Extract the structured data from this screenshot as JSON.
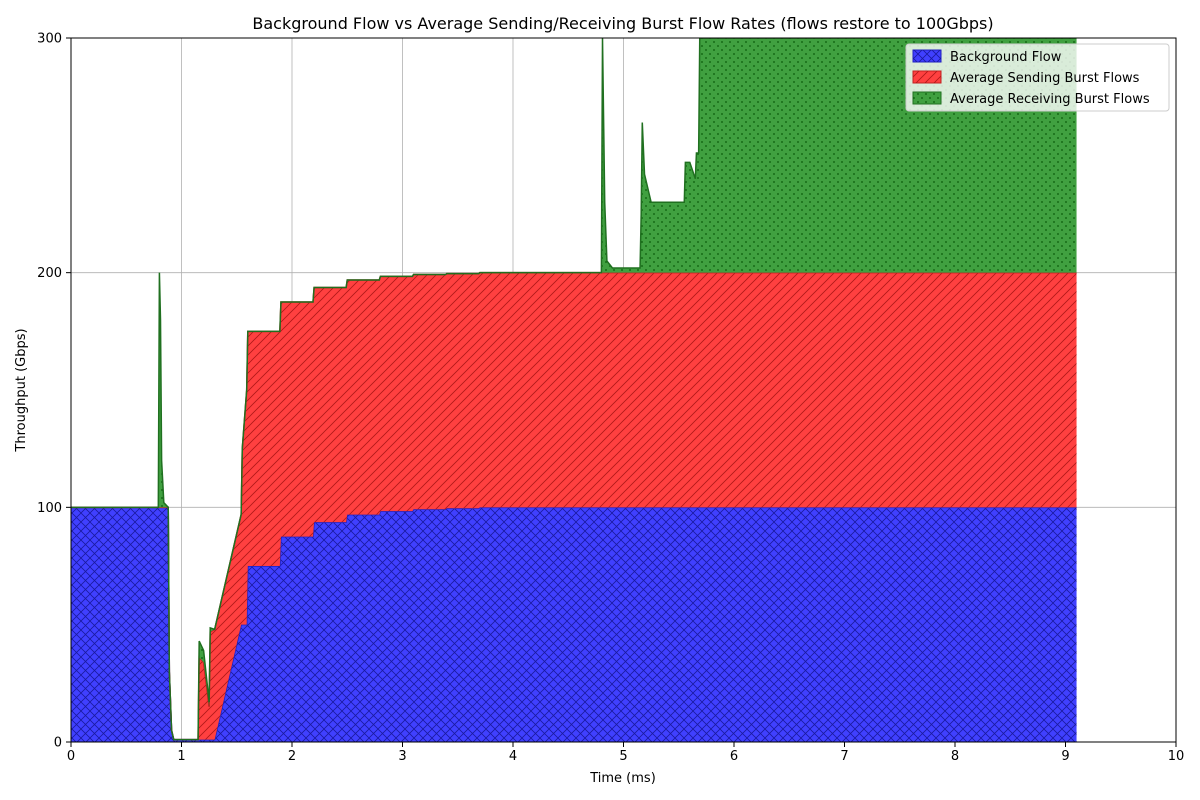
{
  "chart_data": {
    "type": "area",
    "stacked": true,
    "title": "Background Flow vs Average Sending/Receiving Burst Flow Rates (flows restore to 100Gbps)",
    "xlabel": "Time (ms)",
    "ylabel": "Throughput (Gbps)",
    "xlim": [
      0,
      10
    ],
    "ylim": [
      0,
      300
    ],
    "xticks": [
      0,
      1,
      2,
      3,
      4,
      5,
      6,
      7,
      8,
      9,
      10
    ],
    "yticks": [
      0,
      100,
      200,
      300
    ],
    "grid": true,
    "legend_position": "top-right",
    "series": [
      {
        "name": "Background Flow",
        "color": "#0000ff",
        "pattern": "crosshatch",
        "points": [
          [
            0,
            100
          ],
          [
            0.88,
            100
          ],
          [
            0.89,
            30
          ],
          [
            0.91,
            5
          ],
          [
            0.93,
            1
          ],
          [
            1.3,
            1
          ],
          [
            1.3,
            50
          ],
          [
            1.59,
            50
          ],
          [
            1.6,
            75
          ],
          [
            1.89,
            75
          ],
          [
            1.9,
            87.5
          ],
          [
            2.19,
            87.5
          ],
          [
            2.2,
            93.7
          ],
          [
            2.49,
            93.7
          ],
          [
            2.5,
            96.9
          ],
          [
            2.79,
            96.9
          ],
          [
            2.8,
            98.4
          ],
          [
            3.09,
            98.4
          ],
          [
            3.1,
            99.2
          ],
          [
            3.39,
            99.2
          ],
          [
            3.4,
            99.6
          ],
          [
            3.69,
            99.6
          ],
          [
            3.7,
            100
          ],
          [
            9.1,
            100
          ]
        ]
      },
      {
        "name": "Average Sending Burst Flows",
        "color": "#ff0000",
        "pattern": "diagonal",
        "points": [
          [
            0,
            0
          ],
          [
            0.88,
            0
          ],
          [
            0.93,
            0
          ],
          [
            1.15,
            0
          ],
          [
            1.16,
            35
          ],
          [
            1.2,
            33
          ],
          [
            1.25,
            14
          ],
          [
            1.26,
            46
          ],
          [
            1.3,
            47
          ],
          [
            1.3,
            47
          ],
          [
            1.54,
            47
          ],
          [
            1.55,
            75
          ],
          [
            1.59,
            100
          ],
          [
            1.6,
            100
          ],
          [
            1.89,
            100
          ],
          [
            1.9,
            100
          ],
          [
            2.19,
            100
          ],
          [
            2.2,
            100
          ],
          [
            2.49,
            100
          ],
          [
            2.5,
            100
          ],
          [
            2.79,
            100
          ],
          [
            2.8,
            100
          ],
          [
            3.09,
            100
          ],
          [
            3.1,
            100
          ],
          [
            3.39,
            100
          ],
          [
            3.4,
            100
          ],
          [
            3.69,
            100
          ],
          [
            3.7,
            100
          ],
          [
            9.1,
            100
          ]
        ]
      },
      {
        "name": "Average Receiving Burst Flows",
        "color": "#008000",
        "pattern": "dotted",
        "points": [
          [
            0,
            0
          ],
          [
            0.79,
            0
          ],
          [
            0.8,
            100
          ],
          [
            0.81,
            80
          ],
          [
            0.82,
            20
          ],
          [
            0.84,
            2
          ],
          [
            0.88,
            0
          ],
          [
            1.15,
            0
          ],
          [
            1.16,
            7
          ],
          [
            1.2,
            5
          ],
          [
            1.25,
            2
          ],
          [
            1.3,
            0
          ],
          [
            4.8,
            0
          ],
          [
            4.81,
            100
          ],
          [
            4.83,
            30
          ],
          [
            4.85,
            5
          ],
          [
            4.9,
            2
          ],
          [
            5.15,
            2
          ],
          [
            5.16,
            25
          ],
          [
            5.17,
            64
          ],
          [
            5.19,
            42
          ],
          [
            5.25,
            30
          ],
          [
            5.55,
            30
          ],
          [
            5.56,
            47
          ],
          [
            5.6,
            47
          ],
          [
            5.65,
            40
          ],
          [
            5.66,
            51
          ],
          [
            5.68,
            51
          ],
          [
            5.69,
            100
          ],
          [
            9.1,
            100
          ]
        ]
      }
    ]
  }
}
